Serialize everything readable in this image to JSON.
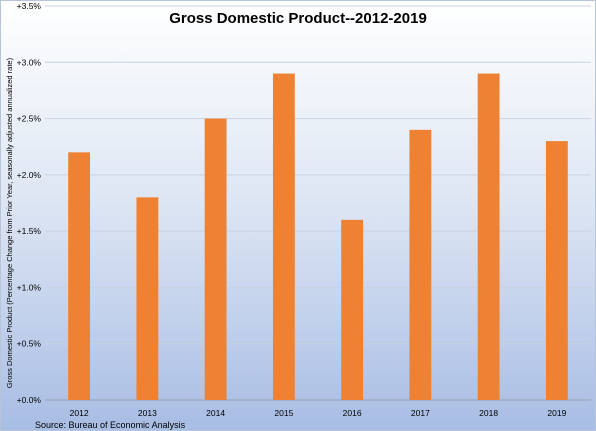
{
  "chart_data": {
    "type": "bar",
    "title": "Gross Domestic Product--2012-2019",
    "ylabel": "Gross Domestic Product (Percentage Change from Prior Year, seasonally adjusted annualized rate)",
    "xlabel": "",
    "categories": [
      "2012",
      "2013",
      "2014",
      "2015",
      "2016",
      "2017",
      "2018",
      "2019"
    ],
    "values": [
      2.2,
      1.8,
      2.5,
      2.9,
      1.6,
      2.4,
      2.9,
      2.3
    ],
    "ylim": [
      0,
      3.5
    ],
    "yticks": [
      0,
      0.5,
      1.0,
      1.5,
      2.0,
      2.5,
      3.0,
      3.5
    ],
    "ytick_labels": [
      "+0.0%",
      "+0.5%",
      "+1.0%",
      "+1.5%",
      "+2.0%",
      "+2.5%",
      "+3.0%",
      "+3.5%"
    ],
    "grid": true,
    "legend": "none",
    "bar_color": "#ef8232",
    "source": "Source: Bureau of Economic Analysis"
  }
}
